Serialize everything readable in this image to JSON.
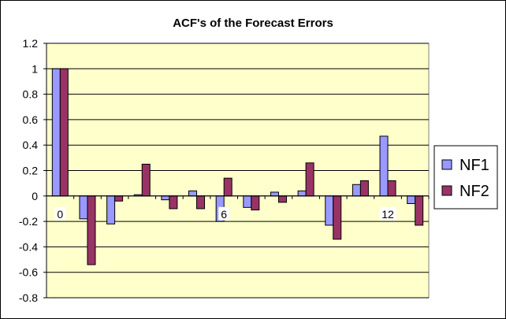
{
  "chart_data": {
    "type": "bar",
    "title": "ACF's of the Forecast Errors",
    "xlabel": "",
    "ylabel": "",
    "categories": [
      "0",
      "1",
      "2",
      "3",
      "4",
      "5",
      "6",
      "7",
      "8",
      "9",
      "10",
      "11",
      "12",
      "13"
    ],
    "x_tick_labels": [
      "0",
      "",
      "",
      "",
      "",
      "",
      "6",
      "",
      "",
      "",
      "",
      "",
      "12",
      ""
    ],
    "series": [
      {
        "name": "NF1",
        "color": "#9999ff",
        "values": [
          1,
          -0.18,
          -0.22,
          0.01,
          -0.03,
          0.04,
          -0.2,
          -0.09,
          0.03,
          0.04,
          -0.23,
          0.09,
          0.47,
          -0.06
        ]
      },
      {
        "name": "NF2",
        "color": "#993366",
        "values": [
          1,
          -0.54,
          -0.04,
          0.25,
          -0.1,
          -0.1,
          0.14,
          -0.11,
          -0.05,
          0.26,
          -0.34,
          0.12,
          0.12,
          -0.23
        ]
      }
    ],
    "ylim": [
      -0.8,
      1.2
    ],
    "y_ticks": [
      -0.8,
      -0.6,
      -0.4,
      -0.2,
      0,
      0.2,
      0.4,
      0.6,
      0.8,
      1,
      1.2
    ],
    "y_tick_labels": [
      "-0.8",
      "-0.6",
      "-0.4",
      "-0.2",
      "0",
      "0.2",
      "0.4",
      "0.6",
      "0.8",
      "1",
      "1.2"
    ],
    "grid": true,
    "legend_position": "right",
    "plot_background": "#ffffcc"
  }
}
